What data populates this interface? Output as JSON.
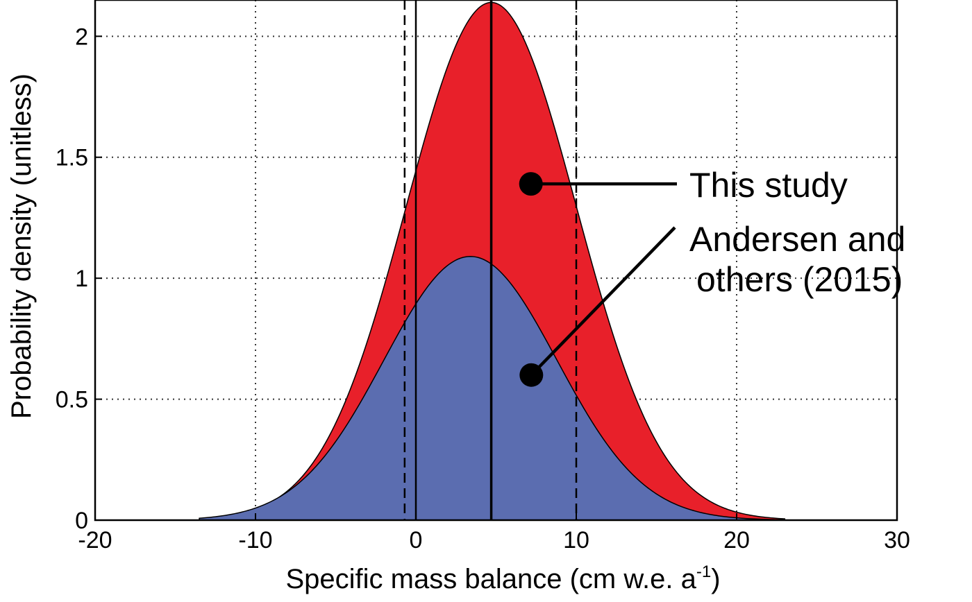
{
  "chart_data": {
    "type": "area",
    "xlabel": "Specific mass balance (cm w.e. a",
    "xlabel_sup": "-1",
    "xlabel_end": ")",
    "ylabel": "Probability density (unitless)",
    "xlim": [
      -20,
      30
    ],
    "ylim": [
      0,
      2.15
    ],
    "x_ticks": [
      -20,
      -10,
      0,
      10,
      20,
      30
    ],
    "x_tick_labels": [
      "-20",
      "-10",
      "0",
      "10",
      "20",
      "30"
    ],
    "y_ticks": [
      0,
      0.5,
      1,
      1.5,
      2
    ],
    "y_tick_labels": [
      "0",
      "0.5",
      "1",
      "1.5",
      "2"
    ],
    "grid": true,
    "series": [
      {
        "name": "This study",
        "color": "#e8202a",
        "distribution": "normal",
        "mean": 4.7,
        "std": 5.3,
        "peak": 2.14,
        "support": [
          -13.5,
          23
        ]
      },
      {
        "name": "Andersen and others (2015)",
        "color": "#5b6db0",
        "distribution": "normal",
        "mean": 3.4,
        "std": 5.4,
        "peak": 1.09,
        "support": [
          -13.5,
          23
        ]
      }
    ],
    "vertical_lines": [
      {
        "x": -0.7,
        "style": "dashed"
      },
      {
        "x": 0,
        "style": "solid"
      },
      {
        "x": 4.7,
        "style": "solid"
      },
      {
        "x": 10,
        "style": "dashed"
      }
    ],
    "annotations": [
      {
        "lines": [
          "This study"
        ],
        "marker_at": [
          7,
          1.39
        ],
        "series": "This study"
      },
      {
        "lines": [
          "Andersen and",
          "others (2015)"
        ],
        "marker_at": [
          7.2,
          0.6
        ],
        "series": "Andersen and others (2015)"
      }
    ]
  }
}
